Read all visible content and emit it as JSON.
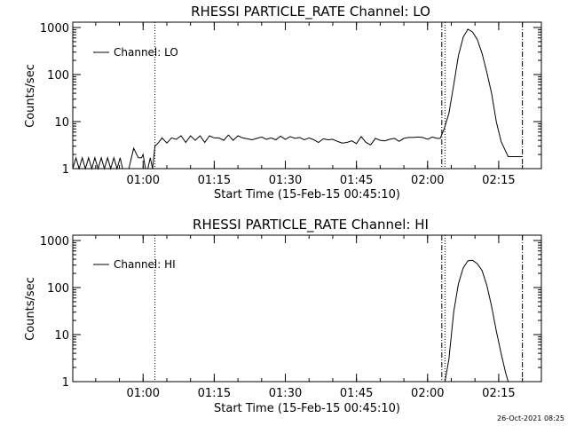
{
  "footer_timestamp": "26-Oct-2021 08:25",
  "colors": {
    "background": "#ffffff",
    "foreground": "#000000"
  },
  "chart_data": [
    {
      "type": "line",
      "title": "RHESSI PARTICLE_RATE Channel: LO",
      "xlabel": "Start Time (15-Feb-15 00:45:10)",
      "ylabel": "Counts/sec",
      "y_scale": "log",
      "ylim": [
        1,
        1000
      ],
      "y_ticks": [
        {
          "value": 1,
          "label": "1"
        },
        {
          "value": 10,
          "label": "10"
        },
        {
          "value": 100,
          "label": "100"
        },
        {
          "value": 1000,
          "label": "1000"
        }
      ],
      "xlim": [
        "00:45:10",
        "02:24:00"
      ],
      "x_ticks": [
        {
          "value": "01:00",
          "label": "01:00"
        },
        {
          "value": "01:15",
          "label": "01:15"
        },
        {
          "value": "01:30",
          "label": "01:30"
        },
        {
          "value": "01:45",
          "label": "01:45"
        },
        {
          "value": "02:00",
          "label": "02:00"
        },
        {
          "value": "02:15",
          "label": "02:15"
        }
      ],
      "legend": {
        "position": "top-left",
        "label": "Channel: LO"
      },
      "markers": [
        {
          "time": "01:02:30",
          "style": "dotted"
        },
        {
          "time": "02:03:00",
          "style": "dash-dot"
        },
        {
          "time": "02:03:40",
          "style": "dotted"
        },
        {
          "time": "02:20:00",
          "style": "dash-dot"
        }
      ],
      "series": [
        {
          "x": [
            "00:45:10",
            "00:45:50",
            "00:46:30",
            "00:47:10",
            "00:47:50",
            "00:48:30",
            "00:49:10",
            "00:49:50",
            "00:50:30",
            "00:51:10",
            "00:51:50",
            "00:52:30",
            "00:53:10",
            "00:53:50",
            "00:54:30",
            "00:55:10",
            "00:55:40",
            "00:56:00",
            "00:57:00",
            "00:58:00",
            "00:59:00",
            "00:59:40",
            "01:00:00",
            "01:00:30",
            "01:01:00",
            "01:01:30",
            "01:02:00",
            "01:02:30",
            "01:03:10",
            "01:04:00",
            "01:05:00",
            "01:06:00",
            "01:07:00",
            "01:08:00",
            "01:09:00",
            "01:10:00",
            "01:11:00",
            "01:12:00",
            "01:13:00",
            "01:14:00",
            "01:15:00",
            "01:16:00",
            "01:17:00",
            "01:18:00",
            "01:19:00",
            "01:20:00",
            "01:21:00",
            "01:22:00",
            "01:23:00",
            "01:24:00",
            "01:25:00",
            "01:26:00",
            "01:27:00",
            "01:28:00",
            "01:29:00",
            "01:30:00",
            "01:31:00",
            "01:32:00",
            "01:33:00",
            "01:34:00",
            "01:35:00",
            "01:36:00",
            "01:37:00",
            "01:38:00",
            "01:39:00",
            "01:40:00",
            "01:41:00",
            "01:42:00",
            "01:43:00",
            "01:44:00",
            "01:45:00",
            "01:46:00",
            "01:47:00",
            "01:48:00",
            "01:49:00",
            "01:50:00",
            "01:51:00",
            "01:52:00",
            "01:53:00",
            "01:54:00",
            "01:55:00",
            "01:56:00",
            "01:57:00",
            "01:58:00",
            "01:59:00",
            "02:00:00",
            "02:01:00",
            "02:02:00",
            "02:02:40",
            "02:03:30",
            "02:04:30",
            "02:05:30",
            "02:06:30",
            "02:07:30",
            "02:08:30",
            "02:09:30",
            "02:10:30",
            "02:11:30",
            "02:12:30",
            "02:13:30",
            "02:14:30",
            "02:15:30",
            "02:16:30",
            "02:17:00",
            "02:17:30",
            "02:18:00",
            "02:19:00",
            "02:20:00"
          ],
          "y": [
            1,
            1.7,
            1,
            1.7,
            1,
            1.7,
            1,
            1.7,
            1,
            1.7,
            1,
            1.7,
            1,
            1.7,
            1,
            1.7,
            1,
            1,
            1,
            2.7,
            1.7,
            1.7,
            2,
            1,
            1,
            1.7,
            1,
            3,
            3.5,
            4.5,
            3.5,
            4.5,
            4.2,
            5,
            3.6,
            5,
            4,
            5,
            3.6,
            5,
            4.5,
            4.5,
            4,
            5.2,
            4,
            5,
            4.5,
            4.3,
            4.1,
            4.4,
            4.7,
            4.2,
            4.5,
            4.1,
            4.9,
            4.2,
            4.8,
            4.4,
            4.6,
            4.1,
            4.5,
            4.1,
            3.6,
            4.3,
            4.1,
            4.2,
            3.8,
            3.5,
            3.6,
            3.9,
            3.4,
            4.8,
            3.6,
            3.2,
            4.4,
            4,
            3.9,
            4.2,
            4.4,
            3.8,
            4.4,
            4.6,
            4.6,
            4.7,
            4.6,
            4.2,
            4.7,
            4.4,
            4.4,
            7,
            15,
            60,
            250,
            620,
            920,
            800,
            550,
            280,
            110,
            40,
            10,
            3.8,
            2.3,
            1.8,
            1.8,
            1.8,
            1.8,
            1.8
          ]
        }
      ]
    },
    {
      "type": "line",
      "title": "RHESSI PARTICLE_RATE Channel: HI",
      "xlabel": "Start Time (15-Feb-15 00:45:10)",
      "ylabel": "Counts/sec",
      "y_scale": "log",
      "ylim": [
        1,
        1000
      ],
      "y_ticks": [
        {
          "value": 1,
          "label": "1"
        },
        {
          "value": 10,
          "label": "10"
        },
        {
          "value": 100,
          "label": "100"
        },
        {
          "value": 1000,
          "label": "1000"
        }
      ],
      "xlim": [
        "00:45:10",
        "02:24:00"
      ],
      "x_ticks": [
        {
          "value": "01:00",
          "label": "01:00"
        },
        {
          "value": "01:15",
          "label": "01:15"
        },
        {
          "value": "01:30",
          "label": "01:30"
        },
        {
          "value": "01:45",
          "label": "01:45"
        },
        {
          "value": "02:00",
          "label": "02:00"
        },
        {
          "value": "02:15",
          "label": "02:15"
        }
      ],
      "legend": {
        "position": "top-left",
        "label": "Channel: HI"
      },
      "markers": [
        {
          "time": "01:02:30",
          "style": "dotted"
        },
        {
          "time": "02:03:00",
          "style": "dash-dot"
        },
        {
          "time": "02:03:40",
          "style": "dotted"
        },
        {
          "time": "02:20:00",
          "style": "dash-dot"
        }
      ],
      "series": [
        {
          "x": [
            "02:03:40",
            "02:04:30",
            "02:05:30",
            "02:06:30",
            "02:07:30",
            "02:08:30",
            "02:09:30",
            "02:10:30",
            "02:11:30",
            "02:12:30",
            "02:13:30",
            "02:14:30",
            "02:15:30",
            "02:16:30",
            "02:17:00"
          ],
          "y": [
            1,
            3,
            30,
            120,
            260,
            370,
            380,
            320,
            230,
            110,
            40,
            12,
            4,
            1.5,
            1
          ]
        }
      ]
    }
  ]
}
